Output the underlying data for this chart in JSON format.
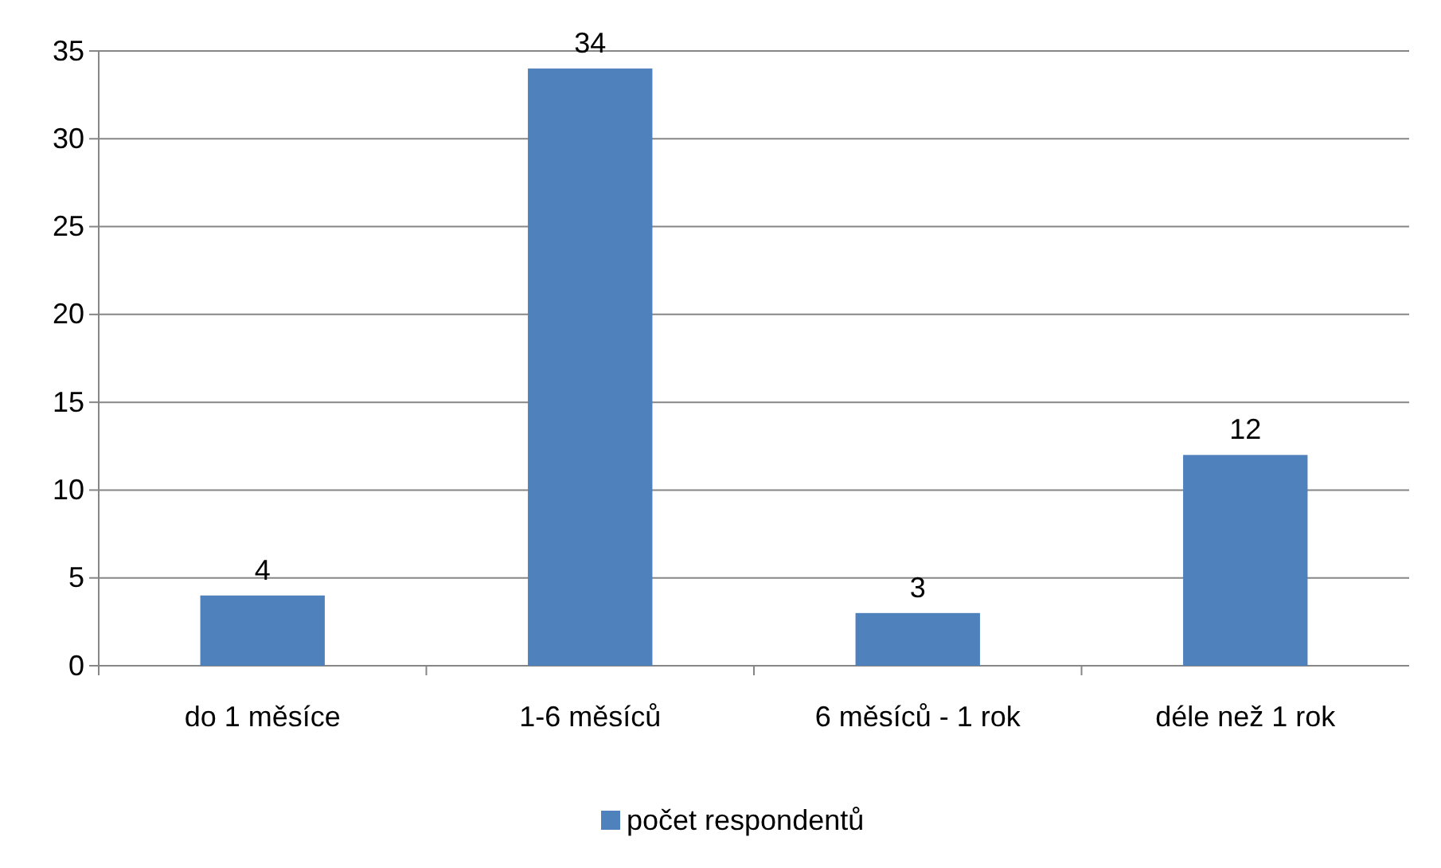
{
  "chart_data": {
    "type": "bar",
    "categories": [
      "do 1 měsíce",
      "1-6 měsíců",
      "6 měsíců - 1 rok",
      "déle než 1 rok"
    ],
    "series": [
      {
        "name": "počet respondentů",
        "color": "#4f81bd",
        "values": [
          4,
          34,
          3,
          12
        ]
      }
    ],
    "ylim": [
      0,
      35
    ],
    "yticks": [
      0,
      5,
      10,
      15,
      20,
      25,
      30,
      35
    ],
    "grid": "y",
    "legend": "bottom",
    "data_labels": true
  }
}
